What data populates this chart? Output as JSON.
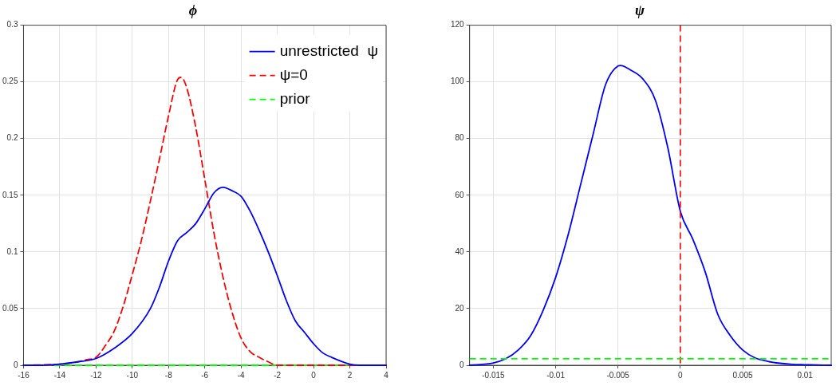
{
  "chart_data": [
    {
      "type": "line",
      "title": "ϕ",
      "xlim": [
        -16,
        4
      ],
      "xticks": [
        -16,
        -14,
        -12,
        -10,
        -8,
        -6,
        -4,
        -2,
        0,
        2,
        4
      ],
      "ylim": [
        0,
        0.3
      ],
      "yticks": [
        0,
        0.05,
        0.1,
        0.15,
        0.2,
        0.25,
        0.3
      ],
      "grid": true,
      "legend": "top right",
      "series": [
        {
          "name": "unrestricted  ψ",
          "color": "#0000ff",
          "line_style": "solid",
          "x": [
            -16,
            -15,
            -14,
            -13,
            -12,
            -11,
            -10,
            -9,
            -8.5,
            -8,
            -7.5,
            -7,
            -6.5,
            -6,
            -5.5,
            -5,
            -4.5,
            -4,
            -3.5,
            -3,
            -2.5,
            -2,
            -1.5,
            -1,
            -0.5,
            0,
            0.5,
            1,
            2,
            2.5,
            4
          ],
          "values": [
            0,
            0,
            0.001,
            0.003,
            0.006,
            0.015,
            0.028,
            0.05,
            0.069,
            0.092,
            0.11,
            0.117,
            0.125,
            0.138,
            0.152,
            0.157,
            0.154,
            0.149,
            0.136,
            0.119,
            0.1,
            0.079,
            0.057,
            0.039,
            0.029,
            0.019,
            0.011,
            0.007,
            0.001,
            0,
            0
          ]
        },
        {
          "name": "ψ=0",
          "color": "#ff0000",
          "line_style": "dashed",
          "x": [
            -16,
            -14,
            -13,
            -12.5,
            -12,
            -11.5,
            -11,
            -10.5,
            -10,
            -9.5,
            -9,
            -8.5,
            -8,
            -7.5,
            -7.3,
            -7,
            -6.5,
            -6,
            -5.5,
            -5,
            -4.5,
            -4,
            -3.5,
            -3,
            -2.5,
            -2,
            4
          ],
          "values": [
            0,
            0.001,
            0.003,
            0.005,
            0.007,
            0.017,
            0.03,
            0.052,
            0.08,
            0.11,
            0.145,
            0.182,
            0.22,
            0.252,
            0.254,
            0.245,
            0.21,
            0.164,
            0.117,
            0.078,
            0.047,
            0.024,
            0.012,
            0.007,
            0.003,
            0,
            0
          ]
        },
        {
          "name": "prior",
          "color": "#00ff00",
          "line_style": "dashed",
          "x": [
            -16,
            4
          ],
          "values": [
            0,
            0
          ]
        }
      ]
    },
    {
      "type": "line",
      "title": "ψ",
      "xlim": [
        -0.0169,
        0.0121
      ],
      "xticks": [
        -0.015,
        -0.01,
        -0.005,
        0,
        0.005,
        0.01
      ],
      "ylim": [
        0,
        120
      ],
      "yticks": [
        0,
        20,
        40,
        60,
        80,
        100,
        120
      ],
      "grid": true,
      "series": [
        {
          "color": "#0000ff",
          "line_style": "solid",
          "x": [
            -0.0169,
            -0.015,
            -0.014,
            -0.013,
            -0.012,
            -0.011,
            -0.01,
            -0.009,
            -0.008,
            -0.007,
            -0.006,
            -0.005,
            -0.0048,
            -0.004,
            -0.003,
            -0.002,
            -0.001,
            0,
            0.001,
            0.002,
            0.003,
            0.004,
            0.005,
            0.006,
            0.007,
            0.008,
            0.009,
            0.01,
            0.0121
          ],
          "values": [
            0,
            0.8,
            2.3,
            5.4,
            10.5,
            19.4,
            31,
            46,
            63.7,
            81.4,
            99,
            105.6,
            105.8,
            104.2,
            101,
            93.5,
            76.7,
            54.3,
            44.5,
            32.9,
            18,
            10.5,
            5.4,
            2.6,
            1.4,
            0.7,
            0.3,
            0.2,
            0
          ]
        }
      ],
      "ref_lines": [
        {
          "axis": "x",
          "value": 0,
          "color": "#ff0000",
          "line_style": "dashed"
        },
        {
          "axis": "y",
          "value": 2.3,
          "color": "#00ff00",
          "line_style": "dashed"
        }
      ]
    }
  ]
}
